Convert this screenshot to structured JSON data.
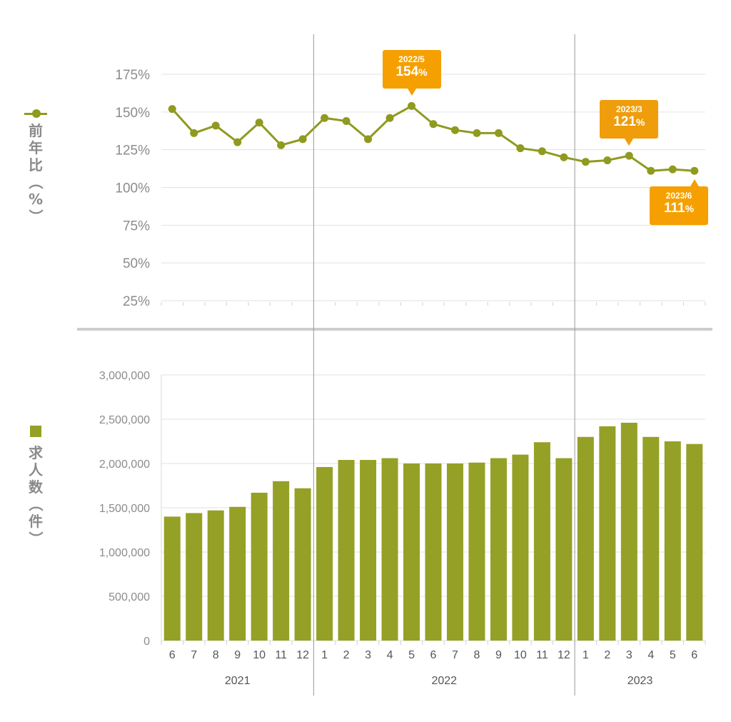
{
  "chart_data": [
    {
      "type": "line",
      "ylabel": "前年比（%）",
      "yticks": [
        "175%",
        "150%",
        "125%",
        "100%",
        "75%",
        "50%",
        "25%"
      ],
      "ylim": [
        25,
        175
      ],
      "x": [
        "2021/6",
        "2021/7",
        "2021/8",
        "2021/9",
        "2021/10",
        "2021/11",
        "2021/12",
        "2022/1",
        "2022/2",
        "2022/3",
        "2022/4",
        "2022/5",
        "2022/6",
        "2022/7",
        "2022/8",
        "2022/9",
        "2022/10",
        "2022/11",
        "2022/12",
        "2023/1",
        "2023/2",
        "2023/3",
        "2023/4",
        "2023/5",
        "2023/6"
      ],
      "values": [
        152,
        136,
        141,
        130,
        143,
        128,
        132,
        146,
        144,
        132,
        146,
        154,
        142,
        138,
        136,
        136,
        126,
        124,
        120,
        117,
        118,
        121,
        111,
        112,
        111
      ],
      "color": "#8f9a1f",
      "grid": true,
      "annotations": [
        {
          "index": 11,
          "date": "2022/5",
          "value": "154",
          "unit": "%",
          "position": "above"
        },
        {
          "index": 21,
          "date": "2023/3",
          "value": "121",
          "unit": "%",
          "position": "above"
        },
        {
          "index": 24,
          "date": "2023/6",
          "value": "111",
          "unit": "%",
          "position": "below"
        }
      ],
      "annotation_color": "#f5a000"
    },
    {
      "type": "bar",
      "ylabel": "求人数（件）",
      "yticks": [
        "3,000,000",
        "2,500,000",
        "2,000,000",
        "1,500,000",
        "1,000,000",
        "500,000",
        "0"
      ],
      "ylim": [
        0,
        3000000
      ],
      "categories": [
        "6",
        "7",
        "8",
        "9",
        "10",
        "11",
        "12",
        "1",
        "2",
        "3",
        "4",
        "5",
        "6",
        "7",
        "8",
        "9",
        "10",
        "11",
        "12",
        "1",
        "2",
        "3",
        "4",
        "5",
        "6"
      ],
      "values": [
        1400000,
        1440000,
        1470000,
        1510000,
        1670000,
        1800000,
        1720000,
        1960000,
        2040000,
        2040000,
        2060000,
        2000000,
        2000000,
        2000000,
        2010000,
        2060000,
        2100000,
        2240000,
        2060000,
        2300000,
        2420000,
        2460000,
        2300000,
        2250000,
        2220000
      ],
      "color": "#95a026",
      "grid": true,
      "years": [
        {
          "label": "2021",
          "start": 0,
          "end": 6
        },
        {
          "label": "2022",
          "start": 7,
          "end": 18
        },
        {
          "label": "2023",
          "start": 19,
          "end": 24
        }
      ]
    }
  ]
}
